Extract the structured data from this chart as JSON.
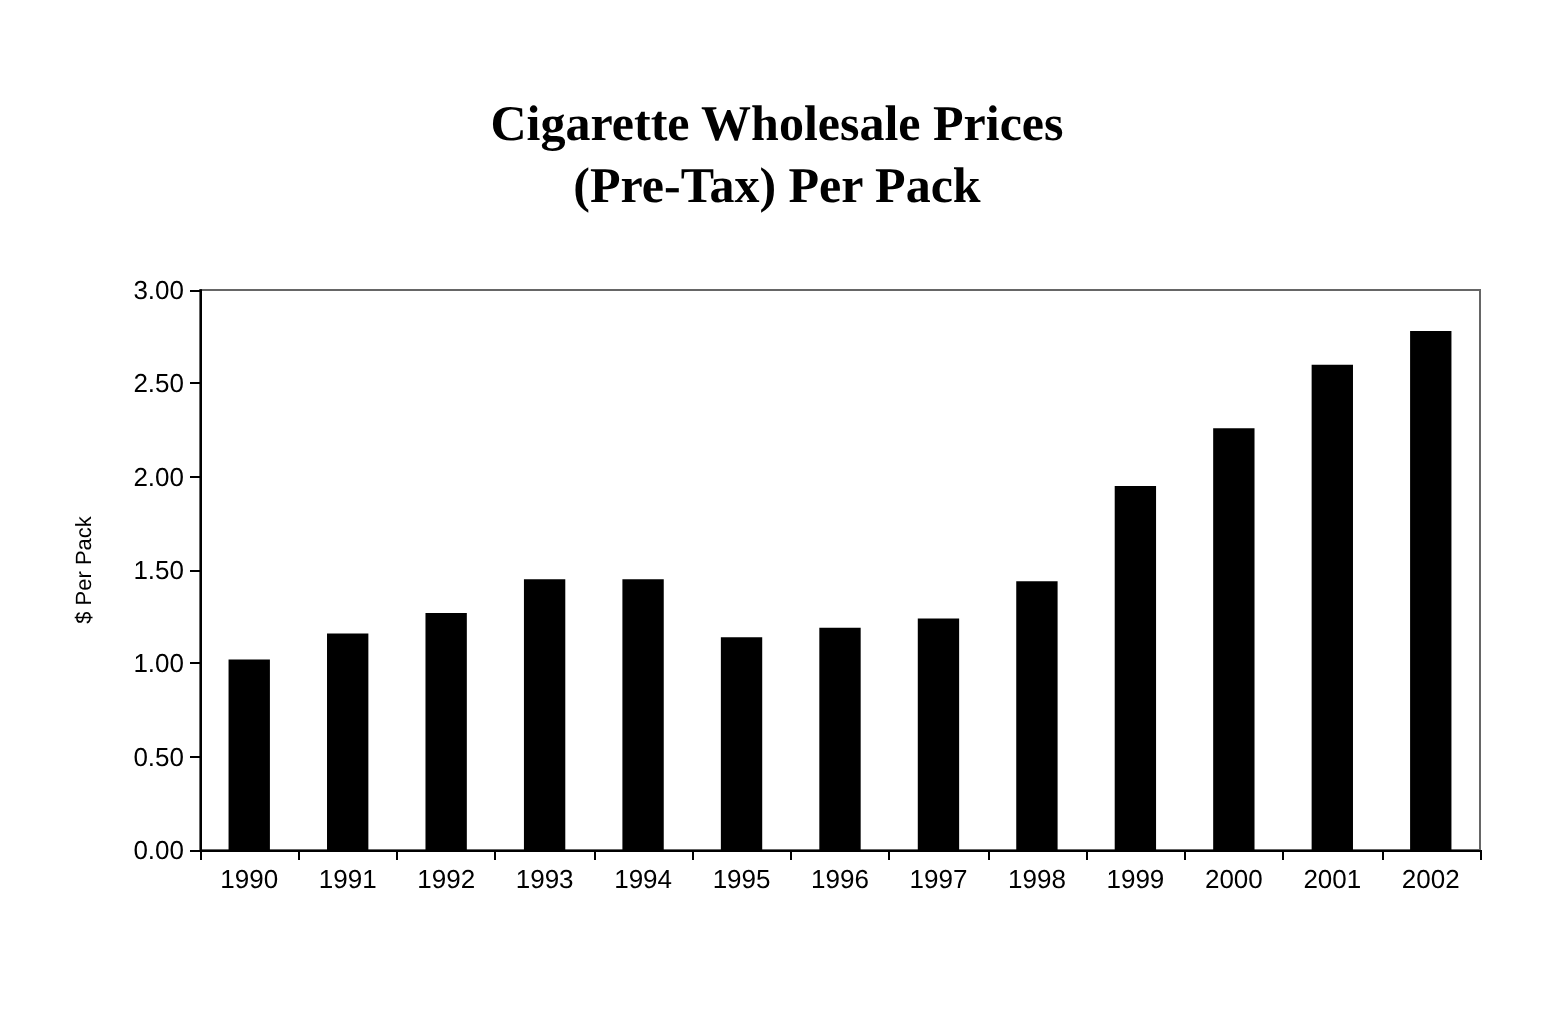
{
  "chart_data": {
    "type": "bar",
    "title": "Cigarette Wholesale Prices\n(Pre-Tax) Per Pack",
    "ylabel": "$ Per Pack",
    "categories": [
      "1990",
      "1991",
      "1992",
      "1993",
      "1994",
      "1995",
      "1996",
      "1997",
      "1998",
      "1999",
      "2000",
      "2001",
      "2002"
    ],
    "values": [
      1.02,
      1.16,
      1.27,
      1.45,
      1.45,
      1.14,
      1.19,
      1.24,
      1.44,
      1.95,
      2.26,
      2.6,
      2.78
    ],
    "color": "#000000",
    "ylim": [
      0,
      3
    ],
    "yticks": [
      {
        "value": 0,
        "label": "0.00"
      },
      {
        "value": 0.5,
        "label": "0.50"
      },
      {
        "value": 1,
        "label": "1.00"
      },
      {
        "value": 1.5,
        "label": "1.50"
      },
      {
        "value": 2,
        "label": "2.00"
      },
      {
        "value": 2.5,
        "label": "2.50"
      },
      {
        "value": 3,
        "label": "3.00"
      }
    ],
    "grid": false
  }
}
